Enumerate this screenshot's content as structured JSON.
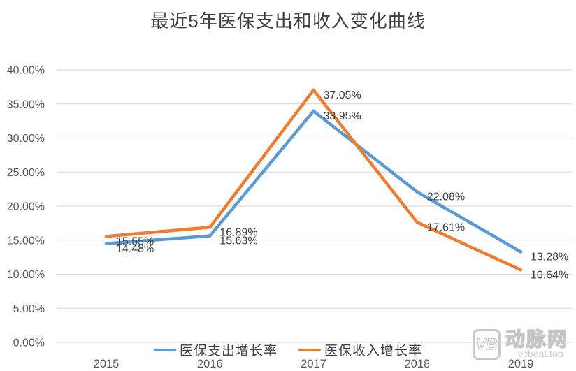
{
  "title": "最近5年医保支出和收入变化曲线",
  "chart_data": {
    "type": "line",
    "categories": [
      "2015",
      "2016",
      "2017",
      "2018",
      "2019"
    ],
    "series": [
      {
        "name": "医保支出增长率",
        "color": "#5B9BD5",
        "values": [
          14.48,
          15.63,
          33.95,
          22.08,
          13.28
        ],
        "labels": [
          "14.48%",
          "15.63%",
          "33.95%",
          "22.08%",
          "13.28%"
        ]
      },
      {
        "name": "医保收入增长率",
        "color": "#ED7D31",
        "values": [
          15.55,
          16.89,
          37.05,
          17.61,
          10.64
        ],
        "labels": [
          "15.55%",
          "16.89%",
          "37.05%",
          "17.61%",
          "10.64%"
        ]
      }
    ],
    "ylim": [
      0,
      40
    ],
    "ytick_step": 5,
    "ytick_labels": [
      "0.00%",
      "5.00%",
      "10.00%",
      "15.00%",
      "20.00%",
      "25.00%",
      "30.00%",
      "35.00%",
      "40.00%"
    ],
    "grid": true,
    "legend_position": "bottom",
    "grid_color": "#d6d6d6",
    "axis_text_color": "#595959",
    "data_label_color": "#404040"
  },
  "watermark": {
    "logo": "VB",
    "brand": "动脉网",
    "domain": "vcbeat.top"
  }
}
